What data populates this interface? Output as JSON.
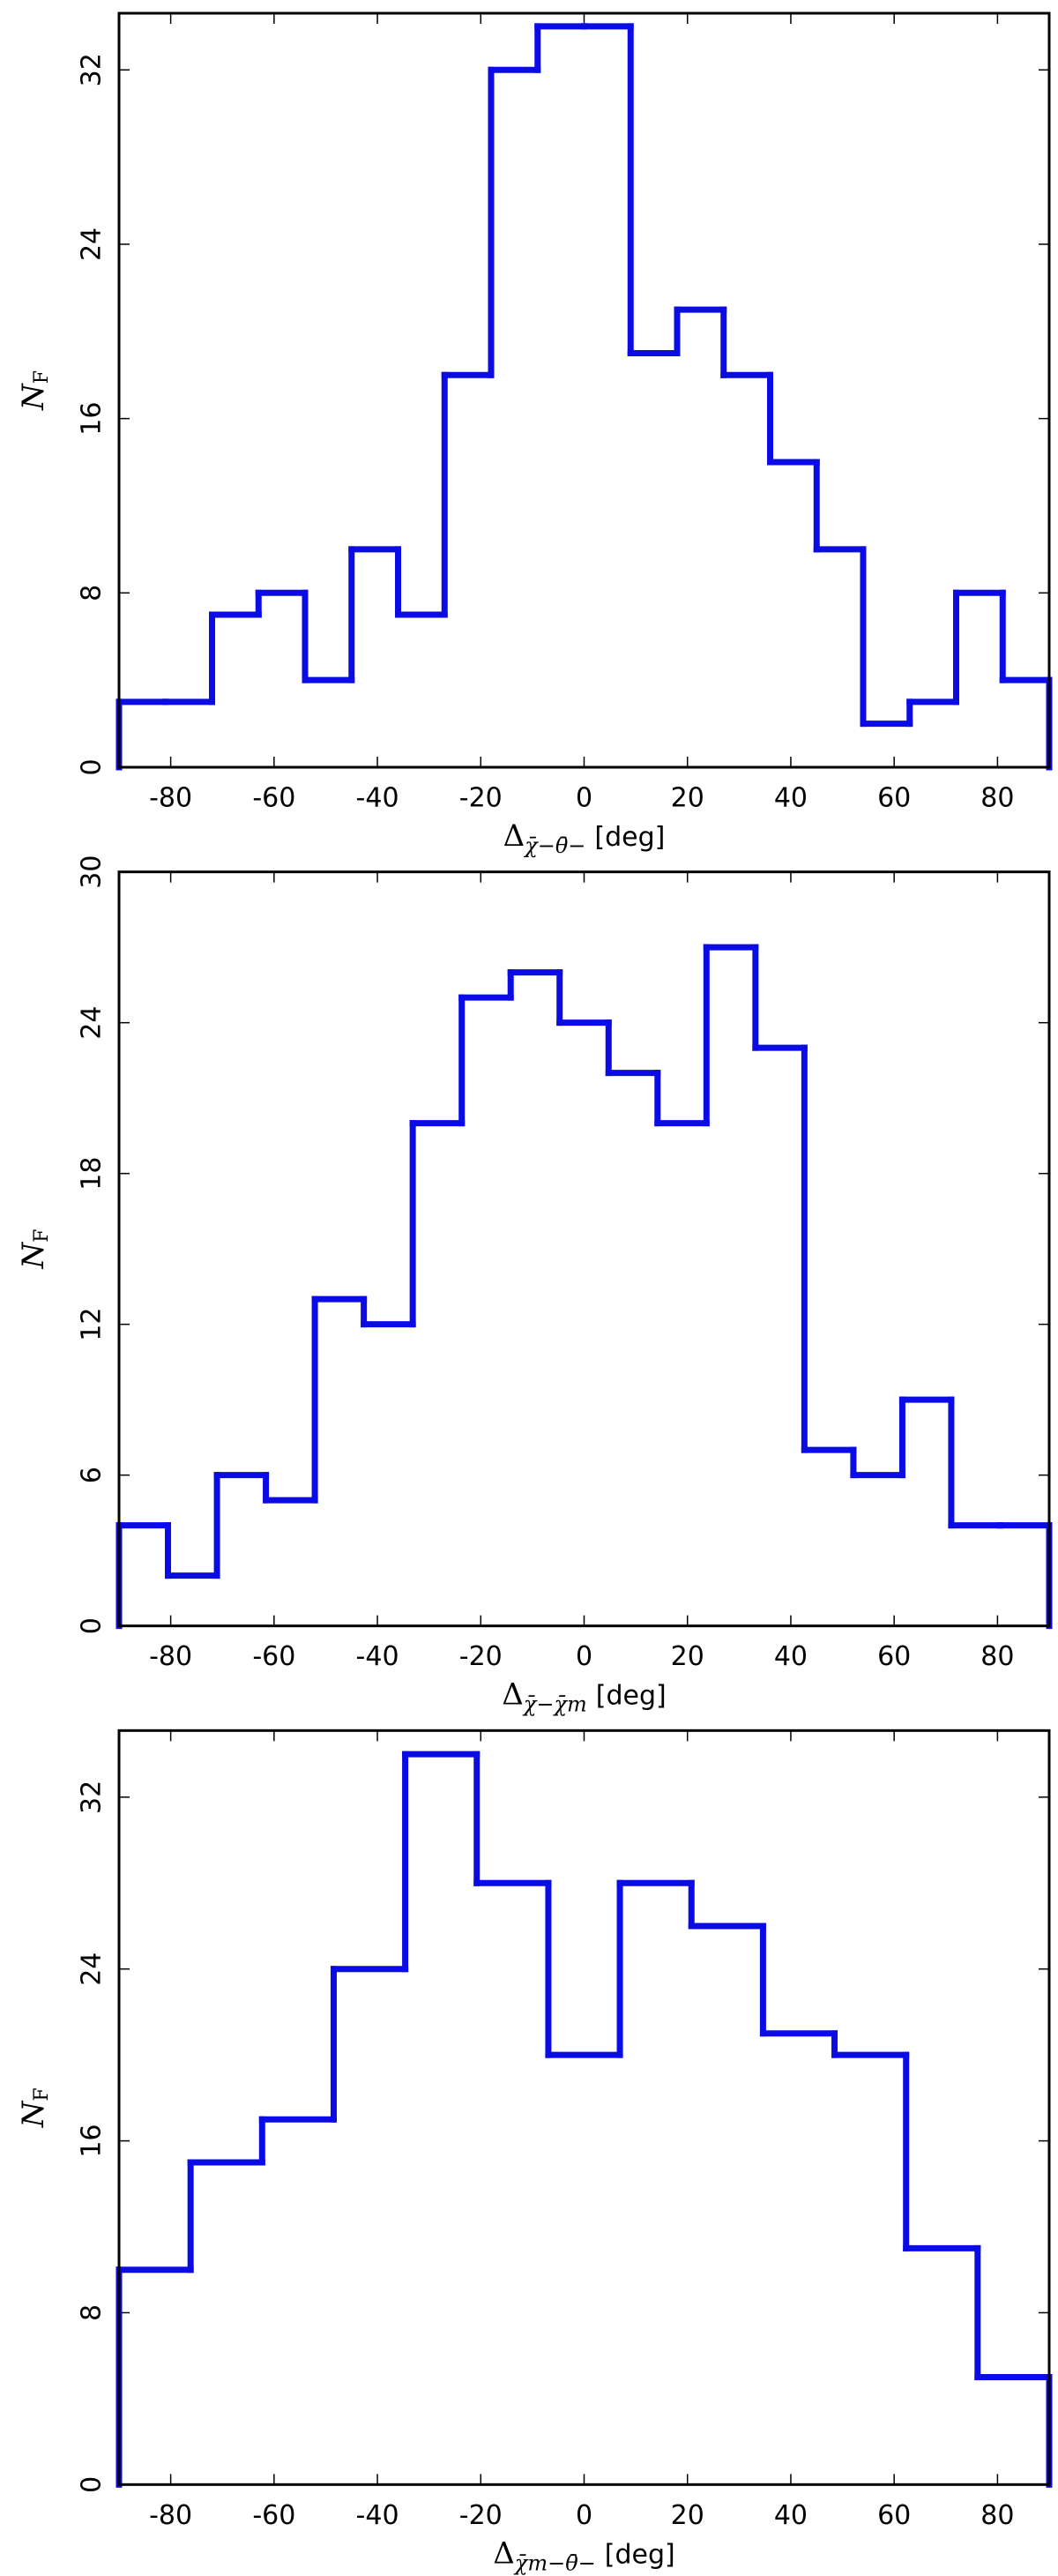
{
  "chart_data": [
    {
      "type": "histogram",
      "xlabel": {
        "symbol": "Δ",
        "subscript": "χ̄−θ̄−",
        "unit": "[deg]"
      },
      "ylabel": {
        "symbol": "N",
        "subscript": "F"
      },
      "color": "#0b0be6",
      "bins": [
        -90,
        -81,
        -72,
        -63,
        -54,
        -45,
        -36,
        -27,
        -18,
        -9,
        0,
        9,
        18,
        27,
        36,
        45,
        54,
        63,
        72,
        81,
        90
      ],
      "values": [
        3,
        3,
        7,
        8,
        4,
        10,
        7,
        18,
        32,
        34,
        34,
        19,
        21,
        18,
        14,
        10,
        2,
        3,
        8,
        4
      ],
      "xlim": [
        -90,
        90
      ],
      "xticks": [
        -80,
        -60,
        -40,
        -20,
        0,
        20,
        40,
        60,
        80
      ],
      "ylim": [
        0,
        34.6
      ],
      "yticks": [
        0,
        8,
        16,
        24,
        32
      ]
    },
    {
      "type": "histogram",
      "xlabel": {
        "symbol": "Δ",
        "subscript": "χ̄−χ̄m",
        "unit": "[deg]"
      },
      "ylabel": {
        "symbol": "N",
        "subscript": "F"
      },
      "color": "#0b0be6",
      "bins": [
        -90,
        -80.53,
        -71.05,
        -61.58,
        -52.11,
        -42.63,
        -33.16,
        -23.68,
        -14.21,
        -4.74,
        4.74,
        14.21,
        23.68,
        33.16,
        42.63,
        52.11,
        61.58,
        71.05,
        80.53,
        90
      ],
      "values": [
        4,
        2,
        6,
        5,
        13,
        12,
        20,
        25,
        26,
        24,
        22,
        20,
        27,
        23,
        7,
        6,
        9,
        4,
        4
      ],
      "xlim": [
        -90,
        90
      ],
      "xticks": [
        -80,
        -60,
        -40,
        -20,
        0,
        20,
        40,
        60,
        80
      ],
      "ylim": [
        0,
        30
      ],
      "yticks": [
        0,
        6,
        12,
        18,
        24,
        30
      ]
    },
    {
      "type": "histogram",
      "xlabel": {
        "symbol": "Δ",
        "subscript": "χ̄m−θ̄−",
        "unit": "[deg]"
      },
      "ylabel": {
        "symbol": "N",
        "subscript": "F"
      },
      "color": "#0b0be6",
      "bins": [
        -90,
        -76.15,
        -62.31,
        -48.46,
        -34.62,
        -20.77,
        -6.92,
        6.92,
        20.77,
        34.62,
        48.46,
        62.31,
        76.15,
        90
      ],
      "values": [
        10,
        15,
        17,
        24,
        34,
        28,
        20,
        28,
        26,
        21,
        20,
        11,
        5
      ],
      "xlim": [
        -90,
        90
      ],
      "xticks": [
        -80,
        -60,
        -40,
        -20,
        0,
        20,
        40,
        60,
        80
      ],
      "ylim": [
        0,
        35.1
      ],
      "yticks": [
        0,
        8,
        16,
        24,
        32
      ]
    }
  ]
}
